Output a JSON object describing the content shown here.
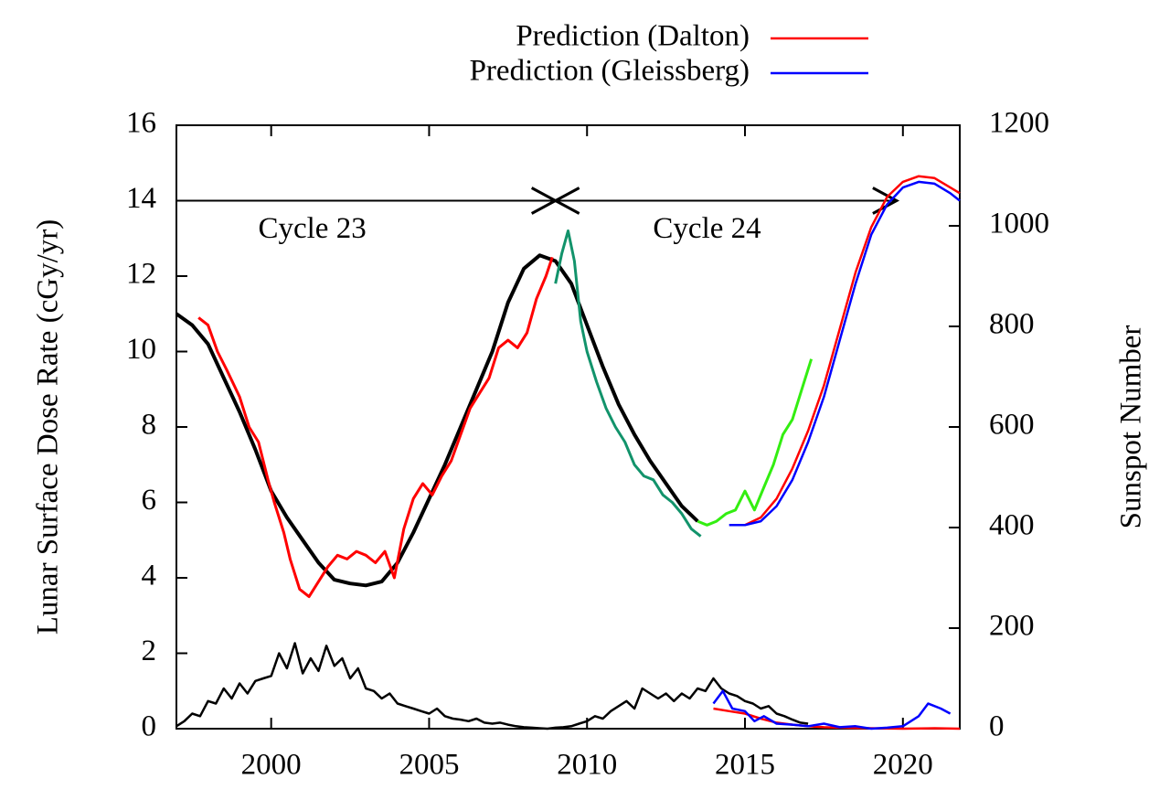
{
  "chart_data": {
    "type": "line",
    "ylabel": "Lunar Surface Dose Rate (cGy/yr)",
    "y2label": "Sunspot Number",
    "xlim": [
      1997,
      2021.8
    ],
    "xticks": [
      2000,
      2005,
      2010,
      2015,
      2020
    ],
    "ylim": [
      0,
      16
    ],
    "yticks": [
      0,
      2,
      4,
      6,
      8,
      10,
      12,
      14,
      16
    ],
    "y2lim": [
      0,
      1200
    ],
    "y2ticks": [
      0,
      200,
      400,
      600,
      800,
      1000,
      1200
    ],
    "legend": "top-right",
    "annotations": [
      {
        "text": "Cycle 23",
        "x": 2001.3,
        "y": 13.2
      },
      {
        "text": "Cycle 24",
        "x": 2013.8,
        "y": 13.2
      }
    ],
    "arrows": [
      {
        "x": [
          1997,
          2009
        ],
        "y": 14
      },
      {
        "x": [
          2009,
          2019.8
        ],
        "y": 14
      }
    ],
    "series": [
      {
        "color": "#000000",
        "x": [
          1997,
          1997.5,
          1998,
          1998.5,
          1999,
          1999.5,
          2000,
          2000.5,
          2001,
          2001.5,
          2002,
          2002.5,
          2003,
          2003.5,
          2004,
          2004.5,
          2005,
          2005.5,
          2006,
          2006.5,
          2007,
          2007.5,
          2008,
          2008.5,
          2009,
          2009.5,
          2010,
          2010.5,
          2011,
          2011.5,
          2012,
          2012.5,
          2013,
          2013.5
        ],
        "values": [
          11.0,
          10.7,
          10.2,
          9.3,
          8.4,
          7.4,
          6.3,
          5.6,
          5.0,
          4.4,
          3.95,
          3.85,
          3.8,
          3.9,
          4.4,
          5.2,
          6.1,
          7.0,
          8.0,
          9.0,
          10.0,
          11.3,
          12.2,
          12.55,
          12.4,
          11.8,
          10.7,
          9.6,
          8.6,
          7.8,
          7.1,
          6.5,
          5.9,
          5.5
        ]
      },
      {
        "color": "#ff0000",
        "x": [
          1997.7,
          1998,
          1998.3,
          1998.6,
          1999,
          1999.3,
          1999.6,
          1999.9,
          2000.1,
          2000.4,
          2000.6,
          2000.9,
          2001.2,
          2001.5,
          2001.8,
          2002.1,
          2002.4,
          2002.7,
          2003,
          2003.3,
          2003.6,
          2003.9,
          2004.2,
          2004.5,
          2004.8,
          2005.1,
          2005.4,
          2005.7,
          2006,
          2006.3,
          2006.6,
          2006.9,
          2007.2,
          2007.5,
          2007.8,
          2008.1,
          2008.4,
          2008.7,
          2008.9
        ],
        "values": [
          10.9,
          10.7,
          10.0,
          9.5,
          8.8,
          8.0,
          7.6,
          6.6,
          6.0,
          5.2,
          4.5,
          3.7,
          3.5,
          3.9,
          4.3,
          4.6,
          4.5,
          4.7,
          4.6,
          4.4,
          4.7,
          4.0,
          5.3,
          6.1,
          6.5,
          6.2,
          6.7,
          7.1,
          7.8,
          8.5,
          8.9,
          9.3,
          10.1,
          10.3,
          10.1,
          10.5,
          11.4,
          12.0,
          12.5
        ]
      },
      {
        "color": "#12936b",
        "x": [
          2009,
          2009.2,
          2009.4,
          2009.6,
          2009.8,
          2010,
          2010.3,
          2010.6,
          2010.9,
          2011.2,
          2011.5,
          2011.8,
          2012.1,
          2012.4,
          2012.7,
          2013,
          2013.3,
          2013.6
        ],
        "values": [
          11.8,
          12.6,
          13.2,
          12.4,
          10.8,
          10.0,
          9.2,
          8.5,
          8.0,
          7.6,
          7.0,
          6.7,
          6.6,
          6.2,
          6.0,
          5.7,
          5.3,
          5.1
        ]
      },
      {
        "color": "#33ee11",
        "x": [
          2013.5,
          2013.8,
          2014.1,
          2014.4,
          2014.7,
          2015,
          2015.3,
          2015.6,
          2015.9,
          2016.2,
          2016.5,
          2016.8,
          2017.1
        ],
        "values": [
          5.5,
          5.4,
          5.5,
          5.7,
          5.8,
          6.3,
          5.8,
          6.4,
          7.0,
          7.8,
          8.2,
          9.0,
          9.8
        ]
      },
      {
        "name": "Prediction (Dalton)",
        "color": "#ff0000",
        "x": [
          2015,
          2015.5,
          2016,
          2016.5,
          2017,
          2017.5,
          2018,
          2018.5,
          2019,
          2019.5,
          2020,
          2020.5,
          2021,
          2021.5,
          2021.8
        ],
        "values": [
          5.4,
          5.6,
          6.1,
          6.9,
          7.9,
          9.1,
          10.6,
          12.1,
          13.3,
          14.1,
          14.5,
          14.65,
          14.6,
          14.35,
          14.2
        ]
      },
      {
        "name": "Prediction (Gleissberg)",
        "color": "#0000ff",
        "x": [
          2014.5,
          2015,
          2015.5,
          2016,
          2016.5,
          2017,
          2017.5,
          2018,
          2018.5,
          2019,
          2019.5,
          2020,
          2020.5,
          2021,
          2021.5,
          2021.8
        ],
        "values": [
          5.4,
          5.4,
          5.5,
          5.9,
          6.6,
          7.6,
          8.8,
          10.3,
          11.8,
          13.1,
          13.9,
          14.35,
          14.5,
          14.45,
          14.2,
          14.0
        ]
      },
      {
        "color": "#000000",
        "axis": "y2",
        "x": [
          1997,
          1997.25,
          1997.5,
          1997.75,
          1998,
          1998.25,
          1998.5,
          1998.75,
          1999,
          1999.25,
          1999.5,
          1999.75,
          2000,
          2000.25,
          2000.5,
          2000.75,
          2001,
          2001.25,
          2001.5,
          2001.75,
          2002,
          2002.25,
          2002.5,
          2002.75,
          2003,
          2003.25,
          2003.5,
          2003.75,
          2004,
          2004.25,
          2004.5,
          2004.75,
          2005,
          2005.25,
          2005.5,
          2005.75,
          2006,
          2006.25,
          2006.5,
          2006.75,
          2007,
          2007.25,
          2007.5,
          2007.75,
          2008,
          2008.25,
          2008.5,
          2008.75,
          2009,
          2009.25,
          2009.5,
          2009.75,
          2010,
          2010.25,
          2010.5,
          2010.75,
          2011,
          2011.25,
          2011.5,
          2011.75,
          2012,
          2012.25,
          2012.5,
          2012.75,
          2013,
          2013.25,
          2013.5,
          2013.75,
          2014,
          2014.25,
          2014.5,
          2014.75,
          2015,
          2015.25,
          2015.5,
          2015.75,
          2016,
          2016.25,
          2016.5,
          2016.75,
          2017
        ],
        "values": [
          5,
          15,
          30,
          25,
          55,
          50,
          80,
          60,
          90,
          70,
          95,
          100,
          105,
          150,
          120,
          170,
          110,
          140,
          115,
          165,
          125,
          140,
          100,
          120,
          80,
          75,
          60,
          70,
          50,
          45,
          40,
          35,
          30,
          40,
          25,
          20,
          18,
          15,
          20,
          12,
          10,
          12,
          8,
          5,
          3,
          2,
          1,
          0,
          2,
          3,
          5,
          10,
          15,
          25,
          20,
          35,
          45,
          55,
          40,
          80,
          70,
          60,
          70,
          55,
          70,
          60,
          80,
          75,
          100,
          80,
          70,
          65,
          55,
          50,
          40,
          45,
          30,
          25,
          18,
          12,
          10
        ]
      },
      {
        "color": "#ff0000",
        "axis": "y2",
        "x": [
          2014,
          2014.5,
          2015,
          2015.5,
          2016,
          2016.5,
          2017,
          2017.5,
          2018,
          2019,
          2020,
          2021,
          2021.8
        ],
        "values": [
          40,
          35,
          30,
          20,
          12,
          8,
          5,
          3,
          2,
          1,
          0,
          1,
          0
        ]
      },
      {
        "color": "#0000ff",
        "axis": "y2",
        "x": [
          2014,
          2014.3,
          2014.6,
          2015,
          2015.3,
          2015.6,
          2016,
          2016.5,
          2017,
          2017.5,
          2018,
          2018.5,
          2019,
          2019.5,
          2020,
          2020.5,
          2020.8,
          2021.2,
          2021.5
        ],
        "values": [
          50,
          75,
          40,
          35,
          15,
          25,
          10,
          8,
          5,
          10,
          3,
          5,
          0,
          2,
          5,
          25,
          50,
          40,
          30
        ]
      }
    ]
  }
}
